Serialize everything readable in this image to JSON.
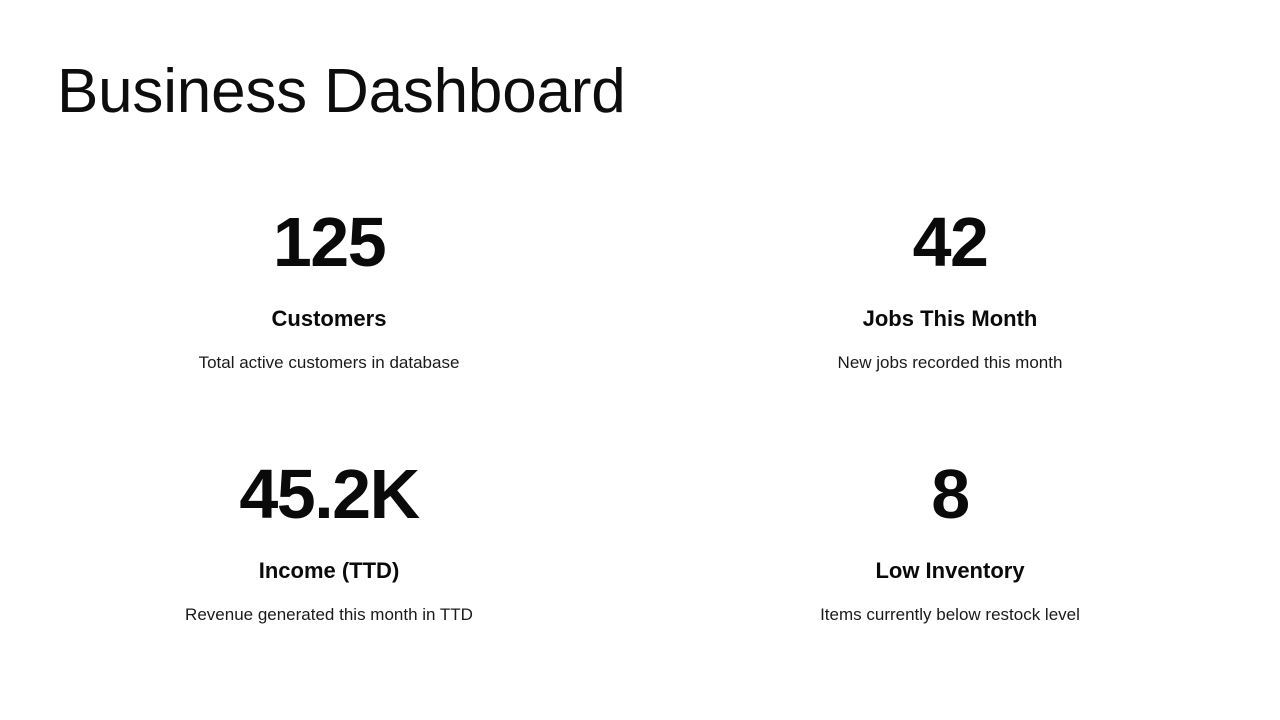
{
  "page": {
    "title": "Business Dashboard"
  },
  "colors": {
    "background": "#ffffff",
    "text": "#0a0a0a",
    "description": "#1a1a1a"
  },
  "metrics": [
    {
      "value": "125",
      "label": "Customers",
      "description": "Total active customers in database"
    },
    {
      "value": "42",
      "label": "Jobs This Month",
      "description": "New jobs recorded this month"
    },
    {
      "value": "45.2K",
      "label": "Income (TTD)",
      "description": "Revenue generated this month in TTD"
    },
    {
      "value": "8",
      "label": "Low Inventory",
      "description": "Items currently below restock level"
    }
  ]
}
